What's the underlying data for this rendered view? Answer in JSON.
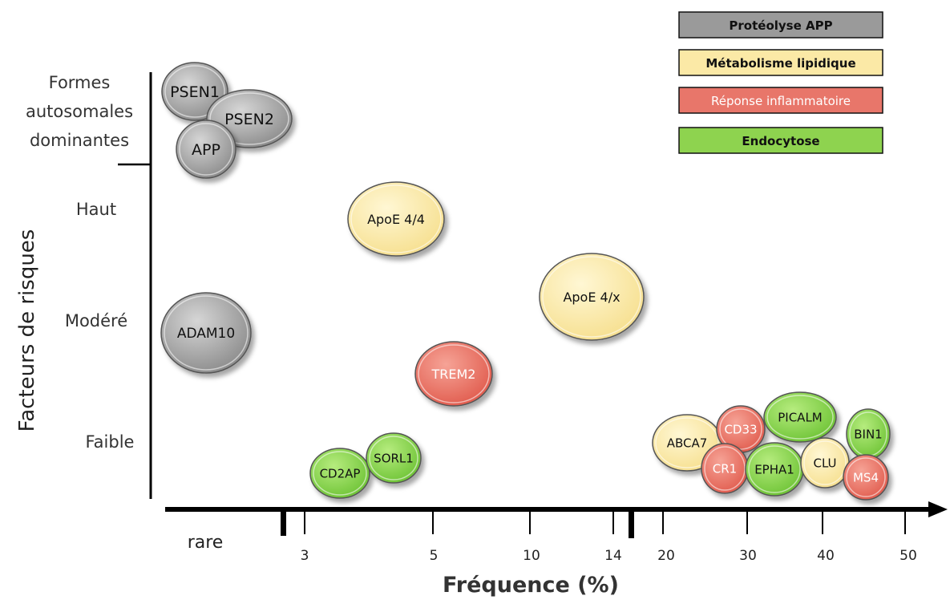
{
  "chart_data": {
    "type": "scatter",
    "xlabel": "Fréquence (%)",
    "ylabel": "Facteurs de risques",
    "x_ticks": [
      "rare",
      "3",
      "5",
      "10",
      "14",
      "20",
      "30",
      "40",
      "50"
    ],
    "y_categories": [
      "Formes autosomales dominantes",
      "Haut",
      "Modéré",
      "Faible"
    ],
    "legend": [
      {
        "name": "Protéolyse APP",
        "color": "#9a9a9a"
      },
      {
        "name": "Métabolisme lipidique",
        "color": "#fbe9a6"
      },
      {
        "name": "Réponse inflammatoire",
        "color": "#e8766a"
      },
      {
        "name": "Endocytose",
        "color": "#8ed34f"
      }
    ],
    "legend_position": "top-right",
    "points": [
      {
        "label": "PSEN1",
        "category": "Protéolyse APP",
        "x": "rare",
        "y": "Formes autosomales dominantes"
      },
      {
        "label": "PSEN2",
        "category": "Protéolyse APP",
        "x": "rare",
        "y": "Formes autosomales dominantes"
      },
      {
        "label": "APP",
        "category": "Protéolyse APP",
        "x": "rare",
        "y": "Formes autosomales dominantes"
      },
      {
        "label": "ApoE 4/4",
        "category": "Métabolisme lipidique",
        "x": 4,
        "y": "Haut"
      },
      {
        "label": "ApoE 4/x",
        "category": "Métabolisme lipidique",
        "x": 12,
        "y": "Modéré"
      },
      {
        "label": "ADAM10",
        "category": "Protéolyse APP",
        "x": "rare",
        "y": "Modéré"
      },
      {
        "label": "TREM2",
        "category": "Réponse inflammatoire",
        "x": 5,
        "y": "Faible"
      },
      {
        "label": "CD2AP",
        "category": "Endocytose",
        "x": 3.5,
        "y": "Faible"
      },
      {
        "label": "SORL1",
        "category": "Endocytose",
        "x": 4,
        "y": "Faible"
      },
      {
        "label": "ABCA7",
        "category": "Métabolisme lipidique",
        "x": 23,
        "y": "Faible"
      },
      {
        "label": "CD33",
        "category": "Réponse inflammatoire",
        "x": 29,
        "y": "Faible"
      },
      {
        "label": "PICALM",
        "category": "Endocytose",
        "x": 37,
        "y": "Faible"
      },
      {
        "label": "BIN1",
        "category": "Endocytose",
        "x": 46,
        "y": "Faible"
      },
      {
        "label": "CR1",
        "category": "Réponse inflammatoire",
        "x": 28,
        "y": "Faible"
      },
      {
        "label": "EPHA1",
        "category": "Endocytose",
        "x": 33,
        "y": "Faible"
      },
      {
        "label": "CLU",
        "category": "Métabolisme lipidique",
        "x": 40,
        "y": "Faible"
      },
      {
        "label": "MS4",
        "category": "Réponse inflammatoire",
        "x": 45,
        "y": "Faible"
      }
    ]
  }
}
